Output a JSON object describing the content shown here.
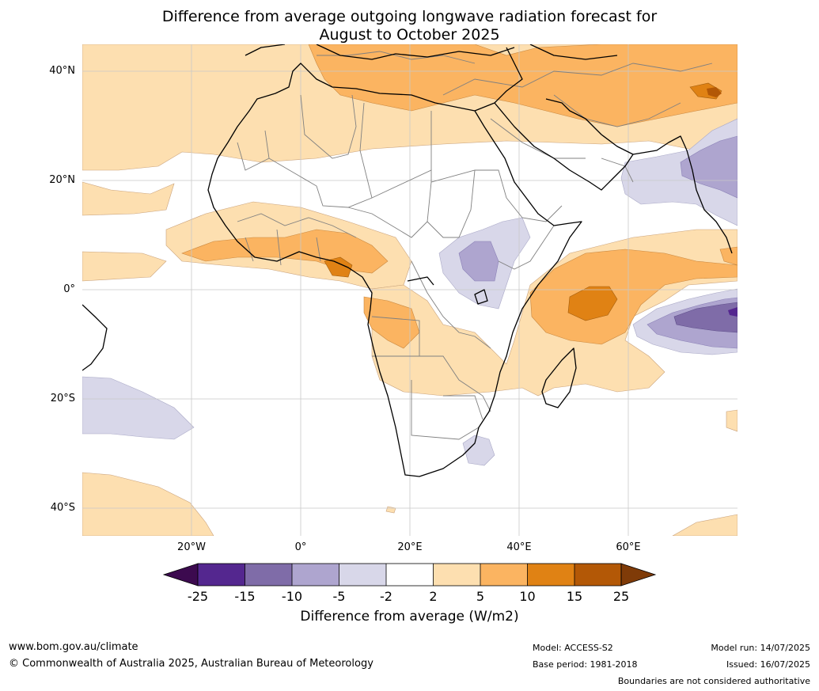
{
  "title": {
    "line1": "Difference from average outgoing longwave radiation forecast for",
    "line2": "August to October 2025"
  },
  "axes": {
    "lat_labels": [
      "40°N",
      "20°N",
      "0°",
      "20°S",
      "40°S"
    ],
    "lon_labels": [
      "20°W",
      "0°",
      "20°E",
      "40°E",
      "60°E"
    ]
  },
  "colorbar": {
    "ticks": [
      "-25",
      "-15",
      "-10",
      "-5",
      "-2",
      "2",
      "5",
      "10",
      "15",
      "25"
    ],
    "colors": [
      "#3c0a4f",
      "#54278f",
      "#7f6ca8",
      "#aea5cf",
      "#d8d7e9",
      "#ffffff",
      "#fddfb0",
      "#fbb461",
      "#e08214",
      "#b35806",
      "#7f3b08"
    ],
    "title": "Difference from average (W/m2)"
  },
  "footer": {
    "website": "www.bom.gov.au/climate",
    "copyright": "© Commonwealth of Australia 2025, Australian Bureau of Meteorology",
    "model": "Model: ACCESS-S2",
    "base_period": "Base period: 1981-2018",
    "model_run": "Model run: 14/07/2025",
    "issued": "Issued: 16/07/2025",
    "disclaimer": "Boundaries are not considered authoritative"
  }
}
